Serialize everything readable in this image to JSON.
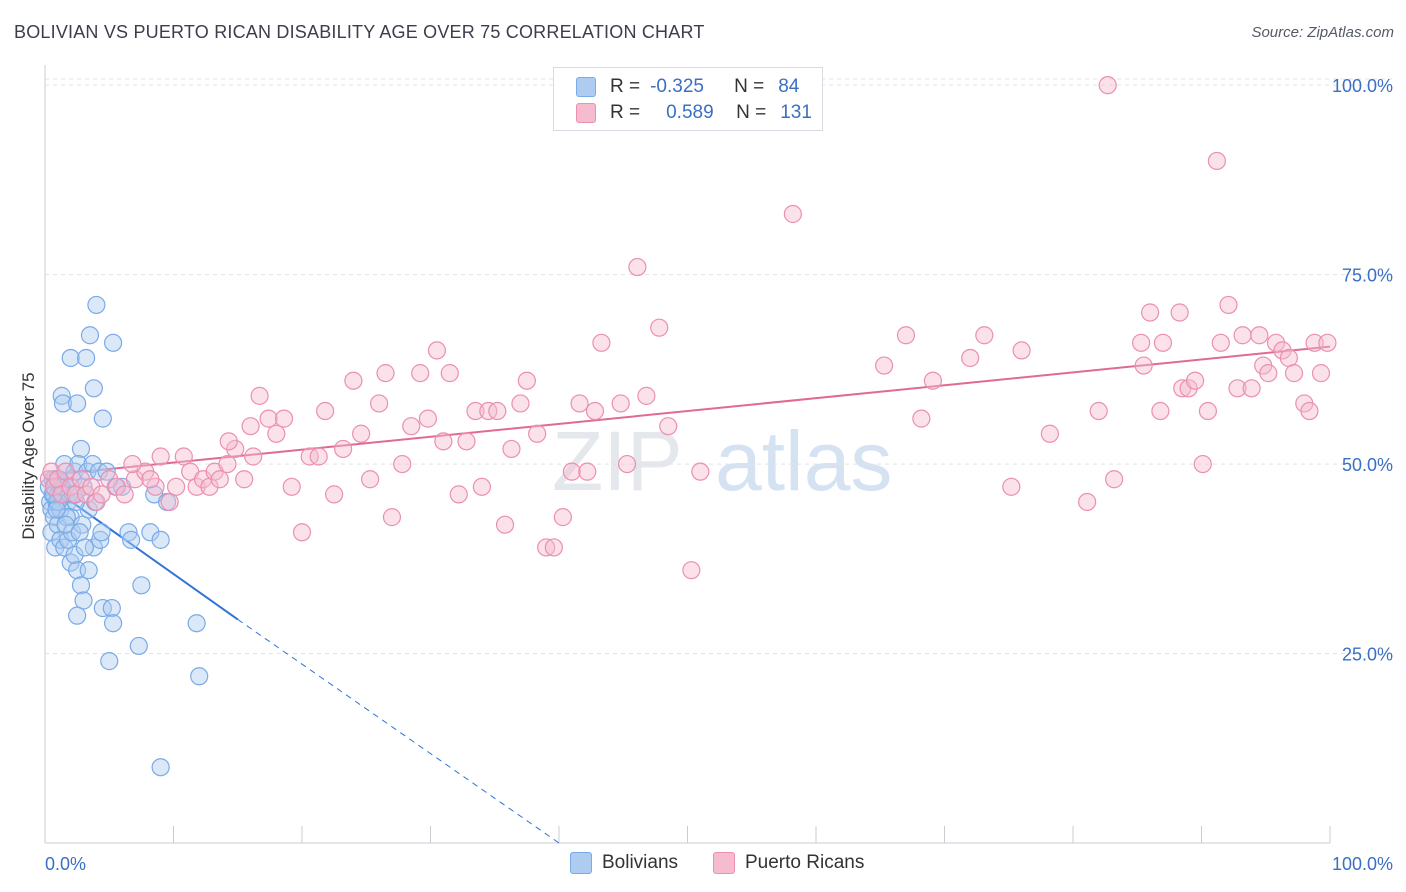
{
  "title": "BOLIVIAN VS PUERTO RICAN DISABILITY AGE OVER 75 CORRELATION CHART",
  "source": "Source: ZipAtlas.com",
  "watermark": {
    "part1": "ZIP",
    "part2": "atlas"
  },
  "legend": {
    "rows": [
      {
        "r_label": "R =",
        "r_value": "-0.325",
        "n_label": "N =",
        "n_value": "84",
        "color": "#aecbf0"
      },
      {
        "r_label": "R =",
        "r_value": "0.589",
        "n_label": "N =",
        "n_value": "131",
        "color": "#f5bcd0"
      }
    ],
    "bottom": [
      {
        "label": "Bolivians",
        "color": "#aecbf0"
      },
      {
        "label": "Puerto Ricans",
        "color": "#f5bcd0"
      }
    ]
  },
  "chart_data": {
    "type": "scatter",
    "title": "BOLIVIAN VS PUERTO RICAN DISABILITY AGE OVER 75 CORRELATION CHART",
    "xlabel": "",
    "ylabel": "Disability Age Over 75",
    "x_tick_labels": [
      "0.0%",
      "100.0%"
    ],
    "y_tick_labels": [
      "25.0%",
      "50.0%",
      "75.0%",
      "100.0%"
    ],
    "y_ticks": [
      25,
      50,
      75,
      100
    ],
    "xlim": [
      0,
      100
    ],
    "ylim": [
      0,
      102
    ],
    "grid": true,
    "legend_position": "top-center",
    "series": [
      {
        "name": "Bolivians",
        "color": "#7aaae8",
        "fill": "#aecbf0",
        "trend": {
          "x0": 0,
          "y0": 47.5,
          "x1": 15,
          "y1": 29.5,
          "dash_to_x": 40,
          "dash_to_y": 0
        },
        "points": [
          [
            0.3,
            47
          ],
          [
            0.4,
            45
          ],
          [
            0.5,
            44
          ],
          [
            0.6,
            46
          ],
          [
            0.7,
            43
          ],
          [
            0.8,
            48
          ],
          [
            0.9,
            45
          ],
          [
            1.0,
            46
          ],
          [
            1.1,
            47
          ],
          [
            1.2,
            44
          ],
          [
            0.5,
            41
          ],
          [
            0.8,
            39
          ],
          [
            1.0,
            42
          ],
          [
            1.2,
            40
          ],
          [
            1.4,
            46
          ],
          [
            1.5,
            50
          ],
          [
            1.6,
            47
          ],
          [
            1.8,
            45
          ],
          [
            2.0,
            43
          ],
          [
            2.2,
            48
          ],
          [
            1.3,
            59
          ],
          [
            1.4,
            58
          ],
          [
            2.0,
            64
          ],
          [
            2.5,
            58
          ],
          [
            2.8,
            52
          ],
          [
            3.2,
            64
          ],
          [
            3.5,
            67
          ],
          [
            3.8,
            60
          ],
          [
            4.0,
            71
          ],
          [
            4.5,
            56
          ],
          [
            5.3,
            66
          ],
          [
            2.3,
            49
          ],
          [
            2.6,
            50
          ],
          [
            3.0,
            47
          ],
          [
            3.3,
            49
          ],
          [
            3.7,
            50
          ],
          [
            4.2,
            49
          ],
          [
            4.8,
            49
          ],
          [
            5.5,
            47
          ],
          [
            6.0,
            47
          ],
          [
            1.5,
            39
          ],
          [
            1.8,
            40
          ],
          [
            2.0,
            37
          ],
          [
            2.3,
            38
          ],
          [
            2.5,
            36
          ],
          [
            2.8,
            34
          ],
          [
            3.0,
            32
          ],
          [
            3.4,
            36
          ],
          [
            3.8,
            39
          ],
          [
            4.3,
            40
          ],
          [
            2.5,
            30
          ],
          [
            4.5,
            31
          ],
          [
            5.2,
            31
          ],
          [
            5.3,
            29
          ],
          [
            5.0,
            24
          ],
          [
            7.3,
            26
          ],
          [
            7.5,
            34
          ],
          [
            6.5,
            41
          ],
          [
            6.7,
            40
          ],
          [
            8.2,
            41
          ],
          [
            9.0,
            40
          ],
          [
            8.5,
            46
          ],
          [
            9.5,
            45
          ],
          [
            11.8,
            29
          ],
          [
            12.0,
            22
          ],
          [
            9.0,
            10
          ],
          [
            1.0,
            45
          ],
          [
            1.7,
            43
          ],
          [
            2.1,
            41
          ],
          [
            2.9,
            42
          ],
          [
            3.4,
            44
          ],
          [
            3.9,
            45
          ],
          [
            4.4,
            41
          ],
          [
            0.7,
            46
          ],
          [
            1.1,
            48
          ],
          [
            1.9,
            46
          ],
          [
            2.4,
            45
          ],
          [
            0.9,
            44
          ],
          [
            1.6,
            42
          ],
          [
            2.7,
            41
          ],
          [
            3.1,
            39
          ],
          [
            0.6,
            48
          ],
          [
            1.3,
            47
          ],
          [
            2.2,
            46
          ]
        ]
      },
      {
        "name": "Puerto Ricans",
        "color": "#ec8fb0",
        "fill": "#f5bcd0",
        "trend": {
          "x0": 0,
          "y0": 48.5,
          "x1": 100,
          "y1": 65.5
        },
        "points": [
          [
            0.3,
            48
          ],
          [
            0.5,
            49
          ],
          [
            0.7,
            47
          ],
          [
            1.0,
            48
          ],
          [
            1.3,
            46
          ],
          [
            1.6,
            49
          ],
          [
            2.0,
            47
          ],
          [
            2.4,
            46
          ],
          [
            2.8,
            48
          ],
          [
            3.2,
            46
          ],
          [
            3.6,
            47
          ],
          [
            4.0,
            45
          ],
          [
            4.4,
            46
          ],
          [
            5.0,
            48
          ],
          [
            5.6,
            47
          ],
          [
            6.2,
            46
          ],
          [
            7.0,
            48
          ],
          [
            7.8,
            49
          ],
          [
            8.6,
            47
          ],
          [
            9.0,
            51
          ],
          [
            9.7,
            45
          ],
          [
            10.2,
            47
          ],
          [
            10.8,
            51
          ],
          [
            11.3,
            49
          ],
          [
            11.8,
            47
          ],
          [
            12.3,
            48
          ],
          [
            12.8,
            47
          ],
          [
            13.2,
            49
          ],
          [
            13.6,
            48
          ],
          [
            14.2,
            50
          ],
          [
            14.8,
            52
          ],
          [
            15.5,
            48
          ],
          [
            16.0,
            55
          ],
          [
            16.7,
            59
          ],
          [
            17.4,
            56
          ],
          [
            18.0,
            54
          ],
          [
            18.6,
            56
          ],
          [
            19.2,
            47
          ],
          [
            20.0,
            41
          ],
          [
            20.6,
            51
          ],
          [
            21.3,
            51
          ],
          [
            21.8,
            57
          ],
          [
            22.5,
            46
          ],
          [
            23.2,
            52
          ],
          [
            24.0,
            61
          ],
          [
            24.6,
            54
          ],
          [
            25.3,
            48
          ],
          [
            26.0,
            58
          ],
          [
            26.5,
            62
          ],
          [
            27.0,
            43
          ],
          [
            27.8,
            50
          ],
          [
            28.5,
            55
          ],
          [
            29.2,
            62
          ],
          [
            29.8,
            56
          ],
          [
            30.5,
            65
          ],
          [
            31.0,
            53
          ],
          [
            31.5,
            62
          ],
          [
            32.2,
            46
          ],
          [
            32.8,
            53
          ],
          [
            33.5,
            57
          ],
          [
            34.0,
            47
          ],
          [
            34.5,
            57
          ],
          [
            35.2,
            57
          ],
          [
            35.8,
            42
          ],
          [
            36.3,
            52
          ],
          [
            37.0,
            58
          ],
          [
            37.5,
            61
          ],
          [
            38.3,
            54
          ],
          [
            39.0,
            39
          ],
          [
            39.6,
            39
          ],
          [
            40.3,
            43
          ],
          [
            41.0,
            49
          ],
          [
            41.6,
            58
          ],
          [
            42.2,
            49
          ],
          [
            42.8,
            57
          ],
          [
            43.3,
            66
          ],
          [
            44.8,
            58
          ],
          [
            45.3,
            50
          ],
          [
            46.1,
            76
          ],
          [
            46.8,
            59
          ],
          [
            47.8,
            68
          ],
          [
            48.5,
            55
          ],
          [
            50.3,
            36
          ],
          [
            51.0,
            49
          ],
          [
            58.2,
            83
          ],
          [
            65.3,
            63
          ],
          [
            67.0,
            67
          ],
          [
            68.2,
            56
          ],
          [
            69.1,
            61
          ],
          [
            72.0,
            64
          ],
          [
            73.1,
            67
          ],
          [
            75.2,
            47
          ],
          [
            76.0,
            65
          ],
          [
            78.2,
            54
          ],
          [
            81.1,
            45
          ],
          [
            82.0,
            57
          ],
          [
            83.2,
            48
          ],
          [
            85.3,
            66
          ],
          [
            85.5,
            63
          ],
          [
            86.0,
            70
          ],
          [
            86.8,
            57
          ],
          [
            87.0,
            66
          ],
          [
            88.3,
            70
          ],
          [
            88.5,
            60
          ],
          [
            89.0,
            60
          ],
          [
            89.5,
            61
          ],
          [
            90.1,
            50
          ],
          [
            90.5,
            57
          ],
          [
            91.2,
            90
          ],
          [
            91.5,
            66
          ],
          [
            92.1,
            71
          ],
          [
            92.8,
            60
          ],
          [
            93.2,
            67
          ],
          [
            93.9,
            60
          ],
          [
            94.5,
            67
          ],
          [
            94.8,
            63
          ],
          [
            95.2,
            62
          ],
          [
            95.8,
            66
          ],
          [
            96.3,
            65
          ],
          [
            96.8,
            64
          ],
          [
            97.2,
            62
          ],
          [
            98.0,
            58
          ],
          [
            98.4,
            57
          ],
          [
            98.8,
            66
          ],
          [
            99.3,
            62
          ],
          [
            99.8,
            66
          ],
          [
            82.7,
            100
          ],
          [
            14.3,
            53
          ],
          [
            16.2,
            51
          ],
          [
            8.2,
            48
          ],
          [
            6.8,
            50
          ]
        ]
      }
    ]
  }
}
